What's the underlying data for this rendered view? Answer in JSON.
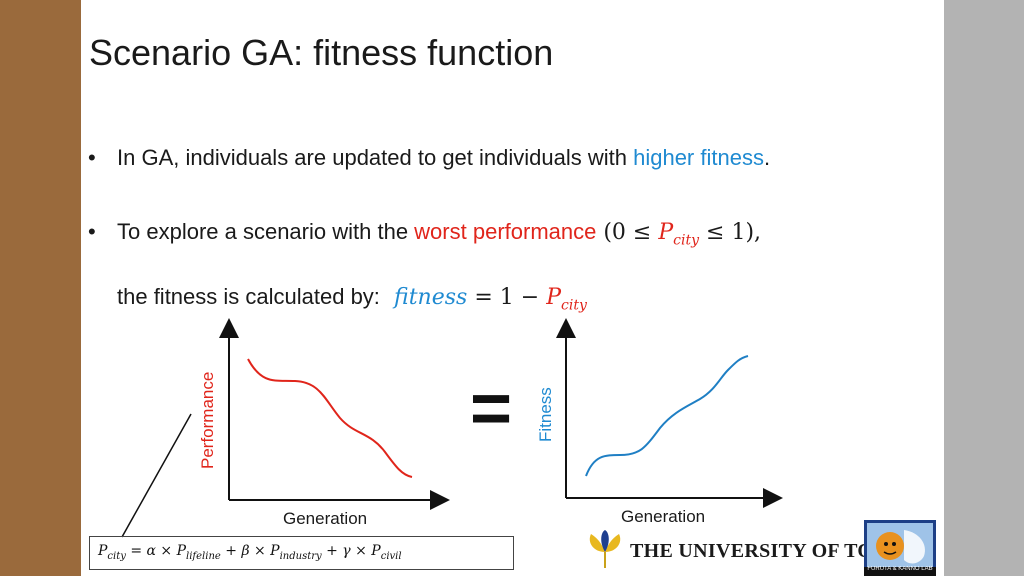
{
  "slide": {
    "title": "Scenario GA: fitness function",
    "bullet1": {
      "marker": "•",
      "text_before": "In GA, individuals are updated to get individuals with ",
      "highlight": "higher fitness",
      "text_after": "."
    },
    "bullet2": {
      "marker": "•",
      "text_before": "To explore a scenario with the ",
      "highlight": "worst performance",
      "math_open": " (0 ≤ ",
      "math_var": "P",
      "math_sub": "city",
      "math_close": " ≤ 1),"
    },
    "fitness_line": {
      "text": "the fitness is calculated by:",
      "lhs": "fitness",
      "mid": " = 1 − ",
      "var": "P",
      "sub": "city"
    },
    "equals_sign": "=",
    "formula": {
      "p": "P",
      "city": "city",
      "part1": " = α × ",
      "lifeline": "lifeline",
      "part2": " + β × ",
      "industry": "industry",
      "part3": " + γ × ",
      "civil": "civil"
    },
    "university": "THE UNIVERSITY OF TOKYO",
    "lab_caption": "FURUTA & KANNO LAB"
  },
  "chart_data": [
    {
      "type": "line",
      "title": "",
      "xlabel": "Generation",
      "ylabel": "Performance",
      "series": [
        {
          "color": "#e0251b",
          "trend": "decreasing"
        }
      ]
    },
    {
      "type": "line",
      "title": "",
      "xlabel": "Generation",
      "ylabel": "Fitness",
      "series": [
        {
          "color": "#1f7fc4",
          "trend": "increasing"
        }
      ]
    }
  ],
  "colors": {
    "left_bar": "#9a6a3c",
    "right_bar": "#b3b3b3",
    "highlight_blue": "#1f8ad1",
    "highlight_red": "#e0251b"
  }
}
